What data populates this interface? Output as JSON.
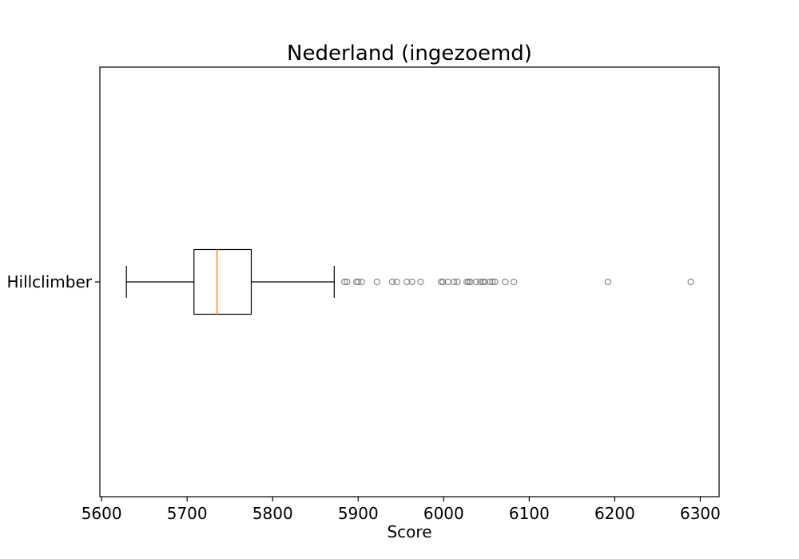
{
  "chart_data": {
    "type": "boxplot",
    "orientation": "horizontal",
    "title": "Nederland (ingezoemd)",
    "xlabel": "Score",
    "ylabel": "",
    "xlim": [
      5598,
      6322
    ],
    "xticks": [
      5600,
      5700,
      5800,
      5900,
      6000,
      6100,
      6200,
      6300
    ],
    "categories": [
      "Hillclimber"
    ],
    "series": [
      {
        "name": "Hillclimber",
        "whisker_low": 5629,
        "q1": 5708,
        "median": 5735,
        "q3": 5775,
        "whisker_high": 5872,
        "outliers": [
          5884,
          5887,
          5898,
          5900,
          5904,
          5922,
          5940,
          5945,
          5957,
          5963,
          5973,
          5997,
          5999,
          6005,
          6012,
          6016,
          6027,
          6029,
          6031,
          6038,
          6043,
          6046,
          6048,
          6054,
          6057,
          6060,
          6072,
          6082,
          6192,
          6289
        ]
      }
    ],
    "grid": false,
    "legend": "none",
    "colors": {
      "box": "#000000",
      "median": "#ff7f0e",
      "outlier": "#7f7f7f"
    }
  }
}
